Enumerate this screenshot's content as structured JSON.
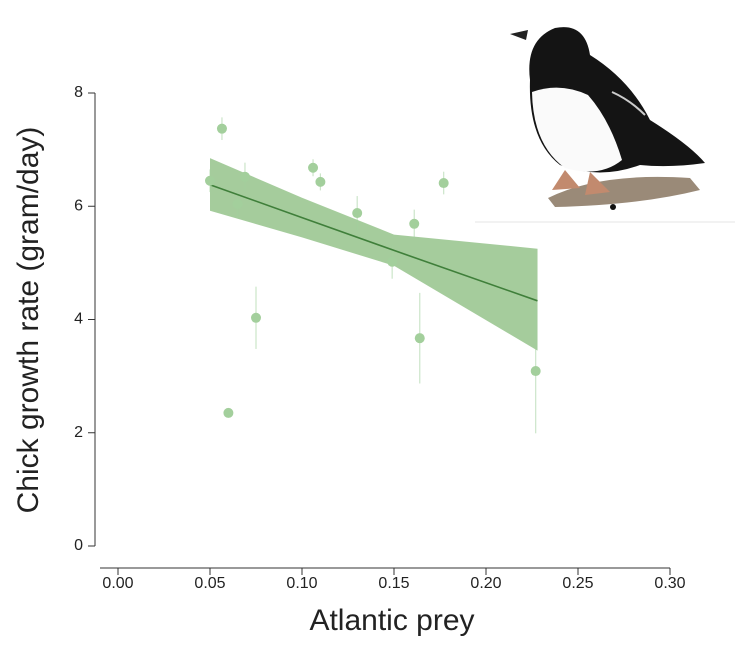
{
  "chart_data": {
    "type": "scatter",
    "xlabel": "Atlantic prey",
    "ylabel": "Chick growth rate (gram/day)",
    "xlim": [
      0,
      0.3
    ],
    "xticks": [
      {
        "value": 0,
        "label": "0.00"
      },
      0.05,
      {
        "value": 0.1,
        "label": "0.10"
      },
      0.15,
      {
        "value": 0.2,
        "label": "0.20"
      },
      0.25,
      {
        "value": 0.3,
        "label": "0.30"
      }
    ],
    "ylim": [
      0,
      8
    ],
    "yticks": [
      0,
      2,
      4,
      6,
      8
    ],
    "series": [
      {
        "color": "#a3cf9c",
        "x": [
          0.05,
          0.0565,
          0.06,
          0.065,
          0.069,
          0.075,
          0.106,
          0.11,
          0.13,
          0.149,
          0.161,
          0.164,
          0.177,
          0.227
        ],
        "values": [
          6.45,
          7.37,
          2.35,
          6.04,
          6.52,
          4.03,
          6.68,
          6.43,
          5.88,
          5.02,
          5.69,
          3.67,
          6.41,
          3.09
        ],
        "errors": [
          0.2,
          0.2,
          0,
          0.25,
          0.25,
          0.55,
          0.15,
          0.15,
          0.3,
          0.3,
          0.25,
          0.8,
          0.2,
          1.1
        ]
      }
    ],
    "fit": {
      "color": "#3f7f3a",
      "band_color": "#8fbf83",
      "x": [
        0.05,
        0.1,
        0.15,
        0.228
      ],
      "values": [
        6.38,
        5.8,
        5.22,
        4.33
      ],
      "upper": [
        6.85,
        6.15,
        5.5,
        5.25
      ],
      "lower": [
        5.92,
        5.45,
        4.95,
        3.45
      ]
    }
  }
}
